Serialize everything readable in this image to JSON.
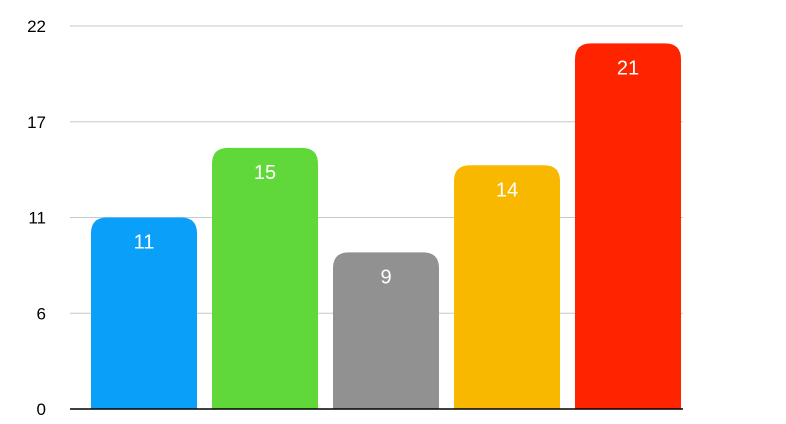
{
  "chart_data": {
    "type": "bar",
    "categories": [
      "",
      "",
      "",
      "",
      ""
    ],
    "values": [
      11,
      15,
      9,
      14,
      21
    ],
    "data_labels": [
      "11",
      "15",
      "9",
      "14",
      "21"
    ],
    "colors": [
      "#0a9ff9",
      "#61d83a",
      "#919191",
      "#f8b800",
      "#ff2400"
    ],
    "title": "",
    "xlabel": "",
    "ylabel": "",
    "ylim": [
      0,
      22
    ],
    "yticks": [
      0,
      5.5,
      11,
      16.5,
      22
    ],
    "ytick_labels": [
      "0",
      "6",
      "11",
      "17",
      "22"
    ],
    "grid": true,
    "legend": "none"
  }
}
